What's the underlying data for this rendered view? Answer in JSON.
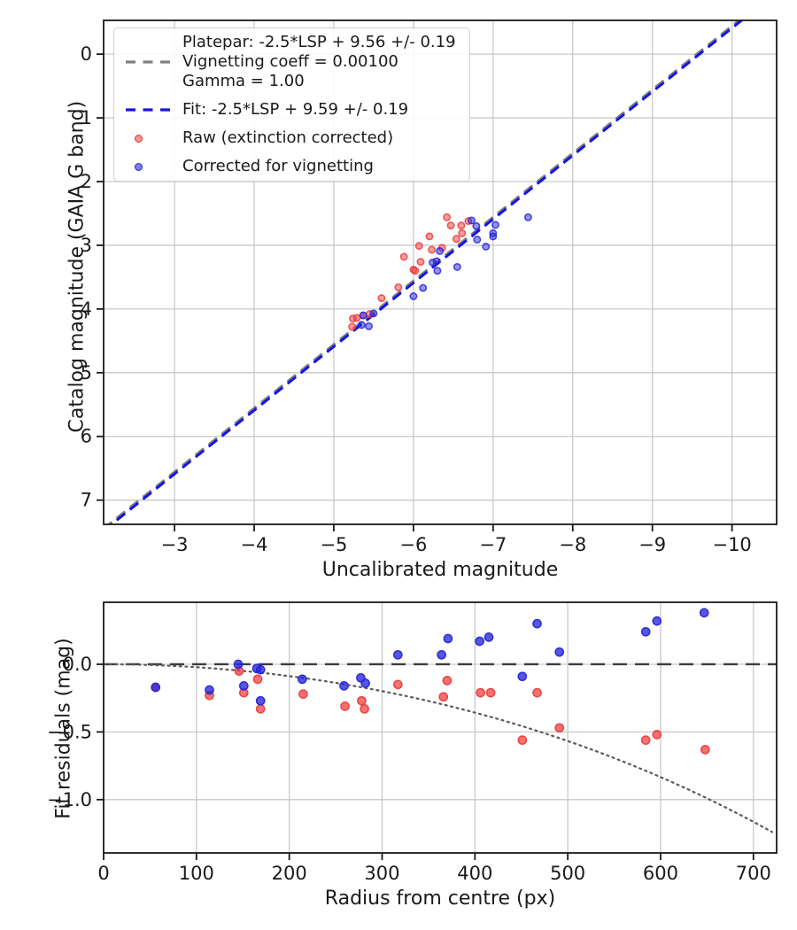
{
  "figure": {
    "background": "#ffffff"
  },
  "colors": {
    "raw_red": "#ee3b3b",
    "vignetting_blue": "#2727d8",
    "fit_line_blue": "#1414e8",
    "platepar_gray": "#808080",
    "zero_line_gray": "#3c3c3c",
    "curve_gray": "#5a5a5a",
    "grid": "#c9c9c9",
    "frame": "#1a1a1a",
    "text": "#1a1a1a"
  },
  "chart_data": [
    {
      "id": "magnitude-fit",
      "type": "scatter",
      "title": "",
      "xlabel": "Uncalibrated magnitude",
      "ylabel": "Catalog magnitude (GAIA G band)",
      "x_inverted": true,
      "y_inverted": true,
      "xlim": [
        -2.11,
        -10.56
      ],
      "ylim": [
        -0.53,
        7.38
      ],
      "grid": true,
      "xticks": {
        "values": [
          -3,
          -4,
          -5,
          -6,
          -7,
          -8,
          -9,
          -10
        ],
        "labels": [
          "−3",
          "−4",
          "−5",
          "−6",
          "−7",
          "−8",
          "−9",
          "−10"
        ]
      },
      "yticks": {
        "values": [
          0,
          1,
          2,
          3,
          4,
          5,
          6,
          7
        ],
        "labels": [
          "0",
          "1",
          "2",
          "3",
          "4",
          "5",
          "6",
          "7"
        ]
      },
      "legend": {
        "position": "upper left",
        "items": [
          {
            "marker": "dashed-line",
            "color": "#808080",
            "label": "Platepar: -2.5*LSP + 9.56 +/- 0.19\nVignetting coeff = 0.00100\nGamma = 1.00"
          },
          {
            "marker": "dashed-line",
            "color": "#1414e8",
            "label": "Fit: -2.5*LSP + 9.59 +/- 0.19"
          },
          {
            "marker": "dot",
            "color": "#ee3b3b",
            "label": "Raw (extinction corrected)"
          },
          {
            "marker": "dot",
            "color": "#2727d8",
            "label": "Corrected for vignetting"
          }
        ]
      },
      "lines": [
        {
          "name": "platepar",
          "slope": 1,
          "intercept": 9.56,
          "color": "#808080",
          "style": "dashed",
          "width": 3.2
        },
        {
          "name": "fit",
          "slope": 1,
          "intercept": 9.59,
          "color": "#1414e8",
          "style": "dashed",
          "width": 3.0
        }
      ],
      "series": [
        {
          "name": "Raw (extinction corrected)",
          "color": "#ee3b3b",
          "fill_alpha": 0.5,
          "edge_alpha": 0.85,
          "marker_r": 3.7,
          "points": [
            [
              -6.42,
              2.56
            ],
            [
              -6.47,
              2.69
            ],
            [
              -6.69,
              2.62
            ],
            [
              -6.6,
              2.69
            ],
            [
              -6.61,
              2.81
            ],
            [
              -6.54,
              2.9
            ],
            [
              -6.2,
              2.86
            ],
            [
              -6.07,
              3.01
            ],
            [
              -6.23,
              3.07
            ],
            [
              -6.36,
              3.04
            ],
            [
              -5.88,
              3.18
            ],
            [
              -6.09,
              3.26
            ],
            [
              -6.0,
              3.38
            ],
            [
              -6.02,
              3.4
            ],
            [
              -5.81,
              3.66
            ],
            [
              -5.6,
              3.83
            ],
            [
              -5.24,
              4.15
            ],
            [
              -5.29,
              4.14
            ],
            [
              -5.37,
              4.1
            ],
            [
              -5.45,
              4.08
            ],
            [
              -5.23,
              4.28
            ]
          ]
        },
        {
          "name": "Corrected for vignetting",
          "color": "#2727d8",
          "fill_alpha": 0.5,
          "edge_alpha": 0.85,
          "marker_r": 3.7,
          "points": [
            [
              -6.73,
              2.61
            ],
            [
              -6.79,
              2.7
            ],
            [
              -7.0,
              2.81
            ],
            [
              -7.0,
              2.86
            ],
            [
              -7.03,
              2.68
            ],
            [
              -6.8,
              2.91
            ],
            [
              -6.91,
              3.02
            ],
            [
              -7.44,
              2.56
            ],
            [
              -6.33,
              3.09
            ],
            [
              -6.29,
              3.25
            ],
            [
              -6.24,
              3.27
            ],
            [
              -6.3,
              3.4
            ],
            [
              -6.55,
              3.34
            ],
            [
              -6.12,
              3.67
            ],
            [
              -6.0,
              3.8
            ],
            [
              -5.37,
              4.1
            ],
            [
              -5.35,
              4.25
            ],
            [
              -5.44,
              4.27
            ],
            [
              -5.5,
              4.07
            ]
          ]
        }
      ]
    },
    {
      "id": "fit-residuals",
      "type": "scatter",
      "title": "",
      "xlabel": "Radius from centre (px)",
      "ylabel": "Fit residuals (mag)",
      "xlim": [
        0,
        725
      ],
      "ylim": [
        0.458,
        -1.394
      ],
      "grid": true,
      "xticks": {
        "values": [
          0,
          100,
          200,
          300,
          400,
          500,
          600,
          700
        ],
        "labels": [
          "0",
          "100",
          "200",
          "300",
          "400",
          "500",
          "600",
          "700"
        ]
      },
      "yticks": {
        "values": [
          0.0,
          -0.5,
          -1.0
        ],
        "labels": [
          "0.0",
          "−0.5",
          "−1.0"
        ]
      },
      "zero_line": {
        "y": 0,
        "color": "#3c3c3c",
        "style": "dashed",
        "width": 2.4
      },
      "vignetting_curve": {
        "coeff": 0.001,
        "formula": "10*log10(cos(coeff*r))",
        "r_min": 0,
        "r_max": 722,
        "color": "#5a5a5a",
        "style": "dotted",
        "width": 2.2
      },
      "series": [
        {
          "name": "Raw (extinction corrected)",
          "color": "#ee3b3b",
          "fill_alpha": 0.72,
          "edge_alpha": 0.95,
          "marker_r": 4.6,
          "points": [
            [
              56,
              -0.17
            ],
            [
              114,
              -0.23
            ],
            [
              146,
              -0.05
            ],
            [
              151,
              -0.21
            ],
            [
              166,
              -0.11
            ],
            [
              169,
              -0.33
            ],
            [
              215,
              -0.22
            ],
            [
              260,
              -0.31
            ],
            [
              278,
              -0.27
            ],
            [
              281,
              -0.33
            ],
            [
              317,
              -0.15
            ],
            [
              366,
              -0.24
            ],
            [
              370,
              -0.12
            ],
            [
              406,
              -0.21
            ],
            [
              417,
              -0.21
            ],
            [
              467,
              -0.21
            ],
            [
              451,
              -0.56
            ],
            [
              491,
              -0.47
            ],
            [
              584,
              -0.56
            ],
            [
              596,
              -0.52
            ],
            [
              648,
              -0.63
            ]
          ]
        },
        {
          "name": "Corrected for vignetting",
          "color": "#2727d8",
          "fill_alpha": 0.78,
          "edge_alpha": 0.95,
          "marker_r": 4.6,
          "points": [
            [
              56,
              -0.17
            ],
            [
              114,
              -0.19
            ],
            [
              145,
              0.0
            ],
            [
              151,
              -0.16
            ],
            [
              165,
              -0.03
            ],
            [
              169,
              -0.04
            ],
            [
              169,
              -0.27
            ],
            [
              214,
              -0.11
            ],
            [
              259,
              -0.16
            ],
            [
              277,
              -0.1
            ],
            [
              282,
              -0.14
            ],
            [
              317,
              0.07
            ],
            [
              364,
              0.07
            ],
            [
              371,
              0.19
            ],
            [
              405,
              0.17
            ],
            [
              415,
              0.2
            ],
            [
              467,
              0.3
            ],
            [
              451,
              -0.09
            ],
            [
              491,
              0.09
            ],
            [
              584,
              0.24
            ],
            [
              596,
              0.32
            ],
            [
              647,
              0.38
            ]
          ]
        }
      ]
    }
  ]
}
